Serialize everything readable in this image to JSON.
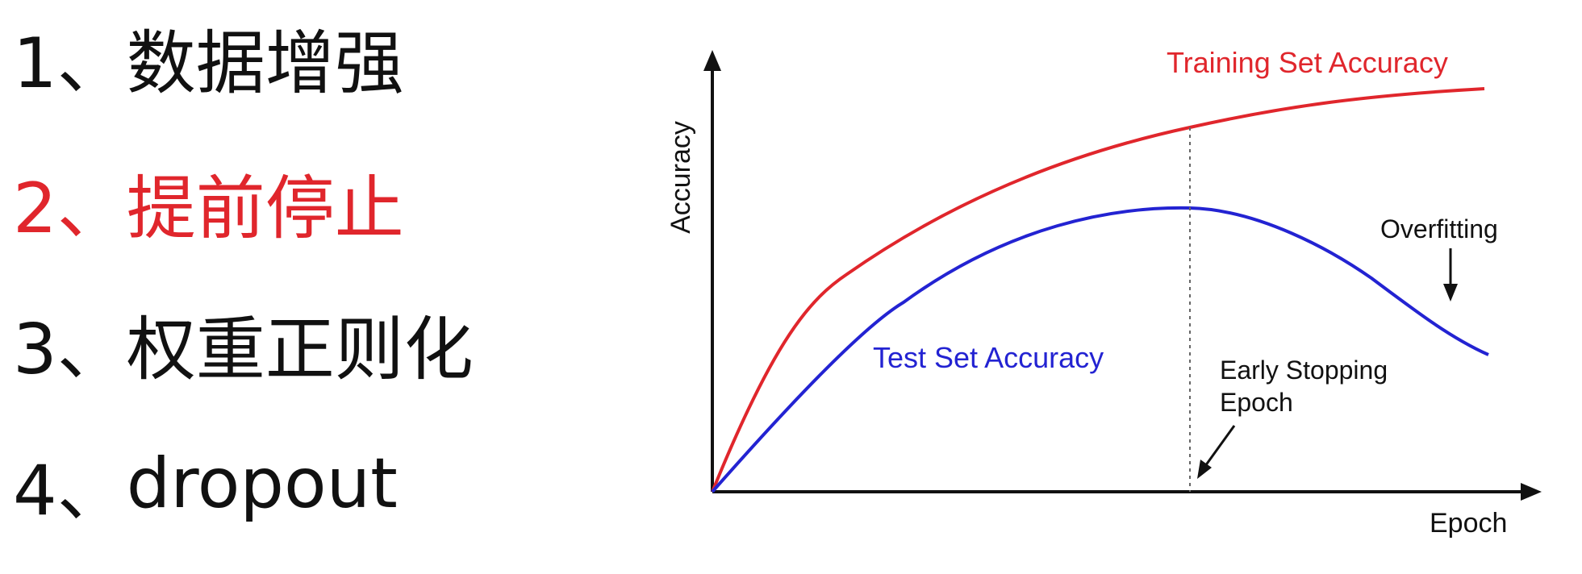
{
  "list": {
    "items": [
      {
        "number": "1、",
        "text": "数据增强"
      },
      {
        "number": "2、",
        "text": "提前停止"
      },
      {
        "number": "3、",
        "text": "权重正则化"
      },
      {
        "number": "4、",
        "text": "dropout"
      }
    ],
    "highlight_color": "#e0262c",
    "text_color": "#111111"
  },
  "diagram": {
    "y_axis_label": "Accuracy",
    "x_axis_label": "Epoch",
    "training_label": "Training Set Accuracy",
    "test_label": "Test Set Accuracy",
    "overfitting_label": "Overfitting",
    "early_stopping_label_line1": "Early Stopping",
    "early_stopping_label_line2": "Epoch",
    "training_color": "#e0262c",
    "test_color": "#2323d2"
  }
}
